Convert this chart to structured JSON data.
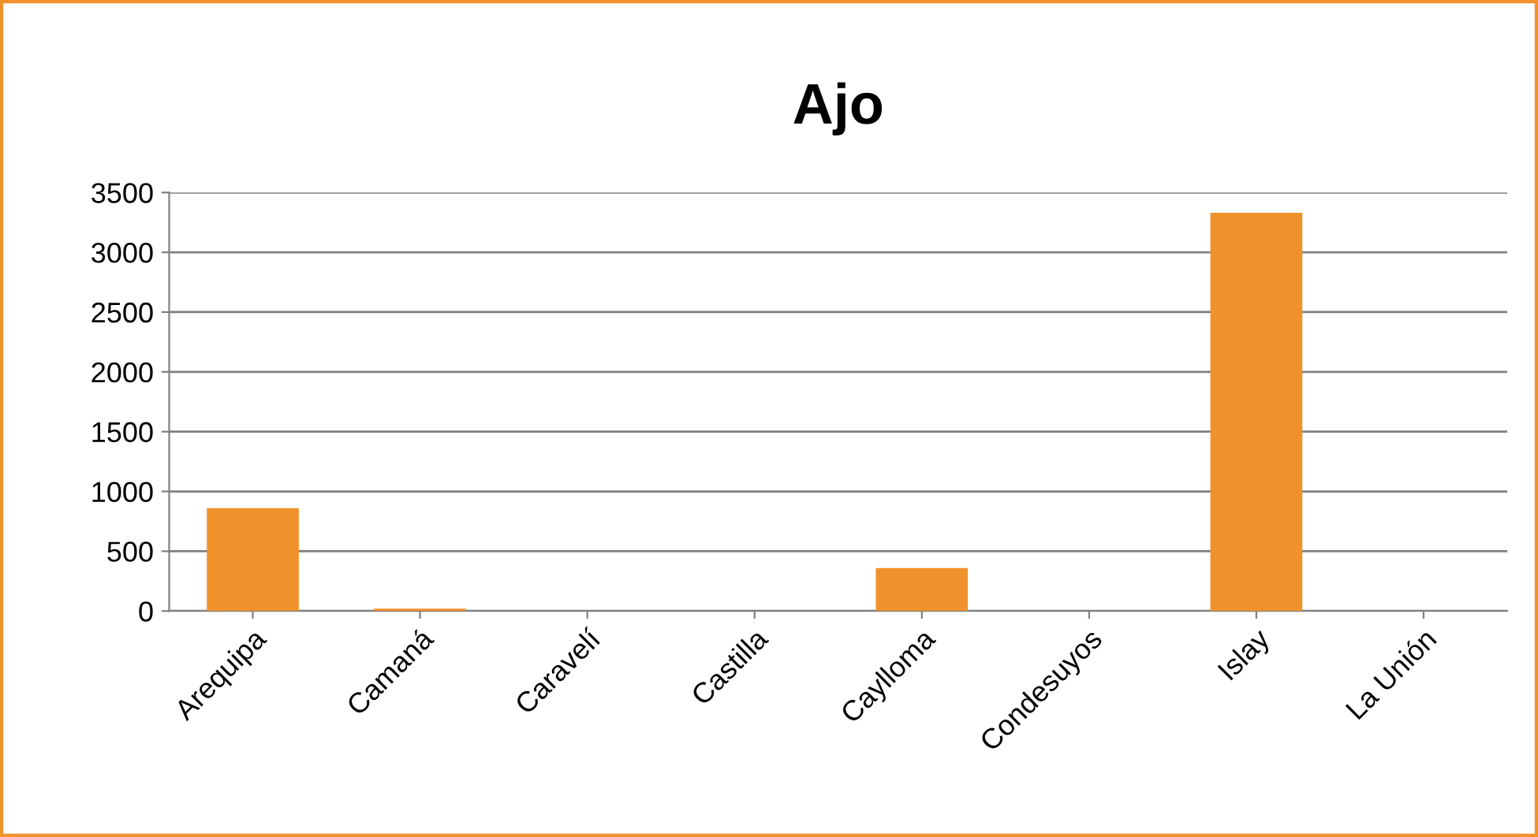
{
  "chart_data": {
    "type": "bar",
    "title": "Ajo",
    "categories": [
      "Arequipa",
      "Camaná",
      "Caravelí",
      "Castilla",
      "Caylloma",
      "Condesuyos",
      "Islay",
      "La Unión"
    ],
    "values": [
      860,
      20,
      0,
      0,
      360,
      0,
      3330,
      0
    ],
    "color": "#f0922b",
    "ylim": [
      0,
      3500
    ],
    "yticks": [
      0,
      500,
      1000,
      1500,
      2000,
      2500,
      3000,
      3500
    ],
    "grid": "y",
    "legend": false
  }
}
